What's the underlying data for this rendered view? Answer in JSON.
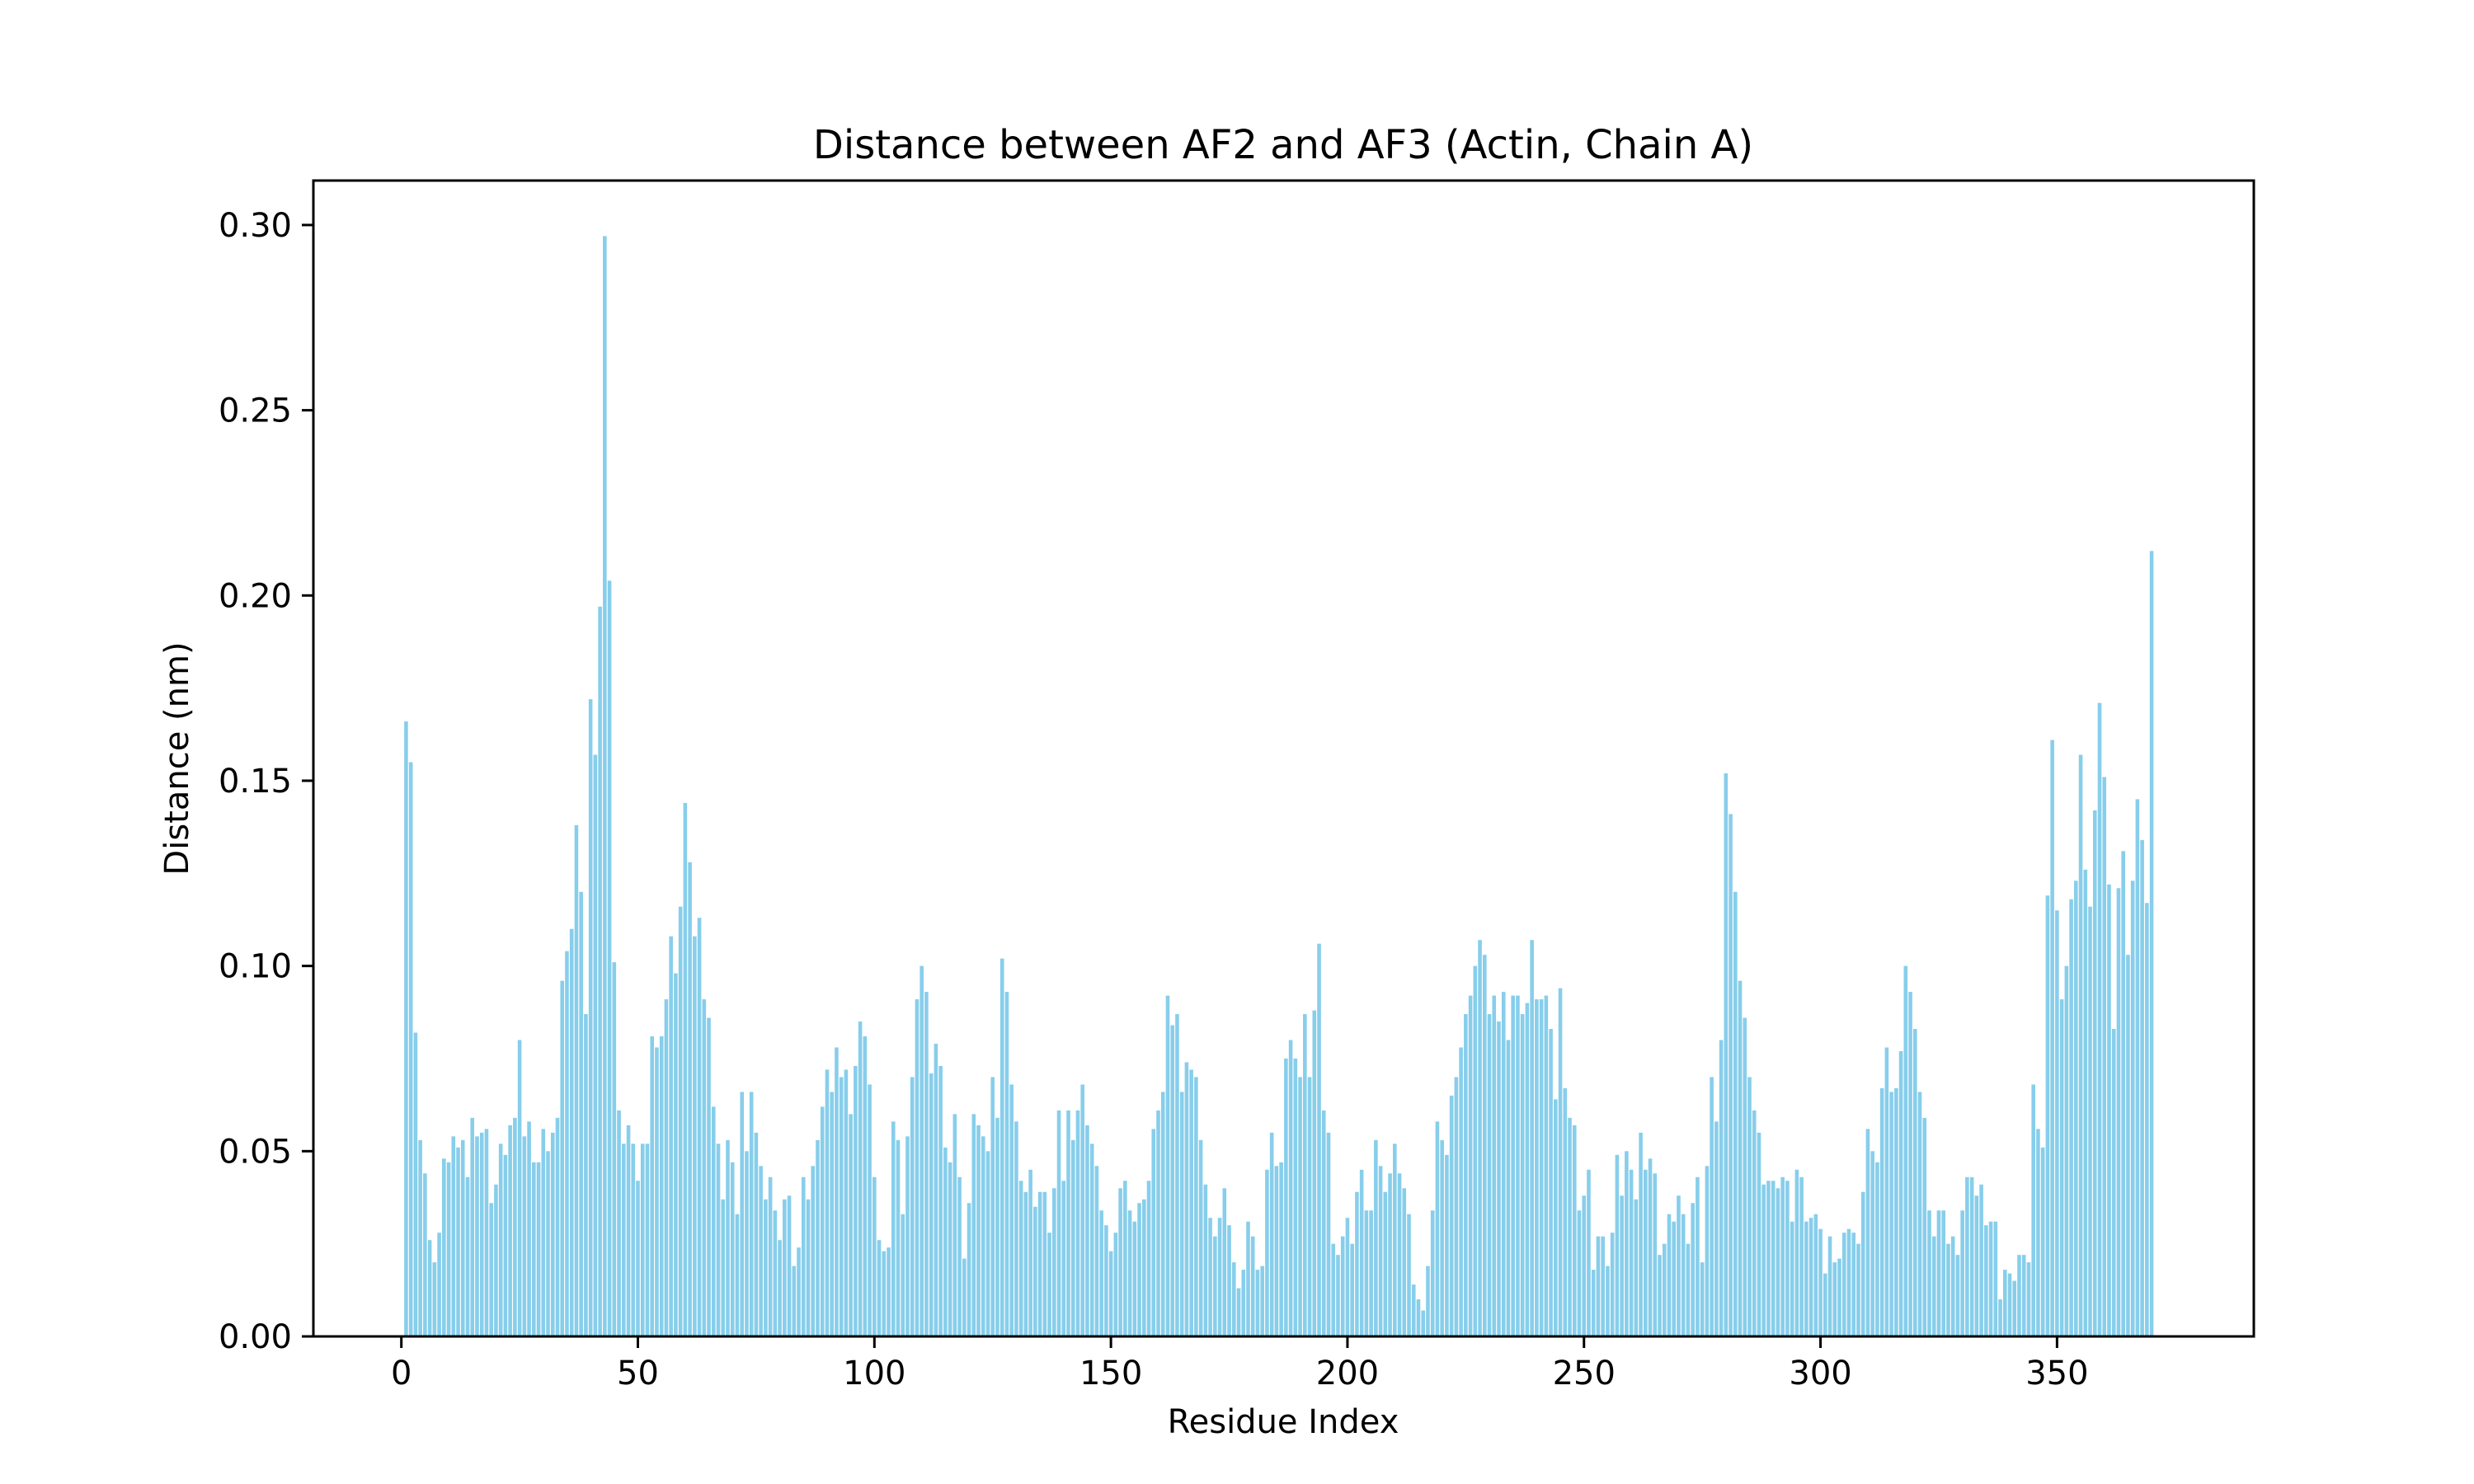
{
  "chart_data": {
    "type": "bar",
    "title": "Distance between AF2 and AF3 (Actin, Chain A)",
    "xlabel": "Residue Index",
    "ylabel": "Distance (nm)",
    "xlim": [
      -18.6,
      391.6
    ],
    "ylim": [
      0,
      0.312
    ],
    "xticks": [
      0,
      50,
      100,
      150,
      200,
      250,
      300,
      350
    ],
    "yticks": [
      0.0,
      0.05,
      0.1,
      0.15,
      0.2,
      0.25,
      0.3
    ],
    "ytick_labels": [
      "0.00",
      "0.05",
      "0.10",
      "0.15",
      "0.20",
      "0.25",
      "0.30"
    ],
    "bar_color": "#87ceeb",
    "grid": false,
    "x_start": 1,
    "series": [
      {
        "values": [
          0.166,
          0.155,
          0.082,
          0.053,
          0.044,
          0.026,
          0.02,
          0.028,
          0.048,
          0.047,
          0.054,
          0.051,
          0.053,
          0.043,
          0.059,
          0.054,
          0.055,
          0.056,
          0.036,
          0.041,
          0.052,
          0.049,
          0.057,
          0.059,
          0.08,
          0.054,
          0.058,
          0.047,
          0.047,
          0.056,
          0.05,
          0.055,
          0.059,
          0.096,
          0.104,
          0.11,
          0.138,
          0.12,
          0.087,
          0.172,
          0.157,
          0.197,
          0.297,
          0.204,
          0.101,
          0.061,
          0.052,
          0.057,
          0.052,
          0.042,
          0.052,
          0.052,
          0.081,
          0.078,
          0.081,
          0.091,
          0.108,
          0.098,
          0.116,
          0.144,
          0.128,
          0.108,
          0.113,
          0.091,
          0.086,
          0.062,
          0.052,
          0.037,
          0.053,
          0.047,
          0.033,
          0.066,
          0.05,
          0.066,
          0.055,
          0.046,
          0.037,
          0.043,
          0.034,
          0.026,
          0.037,
          0.038,
          0.019,
          0.024,
          0.043,
          0.037,
          0.046,
          0.053,
          0.062,
          0.072,
          0.066,
          0.078,
          0.07,
          0.072,
          0.06,
          0.073,
          0.085,
          0.081,
          0.068,
          0.043,
          0.026,
          0.023,
          0.024,
          0.058,
          0.053,
          0.033,
          0.054,
          0.07,
          0.091,
          0.1,
          0.093,
          0.071,
          0.079,
          0.073,
          0.051,
          0.047,
          0.06,
          0.043,
          0.021,
          0.036,
          0.06,
          0.057,
          0.054,
          0.05,
          0.07,
          0.059,
          0.102,
          0.093,
          0.068,
          0.058,
          0.042,
          0.039,
          0.045,
          0.035,
          0.039,
          0.039,
          0.028,
          0.04,
          0.061,
          0.042,
          0.061,
          0.053,
          0.061,
          0.068,
          0.057,
          0.052,
          0.046,
          0.034,
          0.03,
          0.023,
          0.028,
          0.04,
          0.042,
          0.034,
          0.031,
          0.036,
          0.037,
          0.042,
          0.056,
          0.061,
          0.066,
          0.092,
          0.084,
          0.087,
          0.066,
          0.074,
          0.072,
          0.07,
          0.053,
          0.041,
          0.032,
          0.027,
          0.032,
          0.04,
          0.03,
          0.02,
          0.013,
          0.018,
          0.031,
          0.027,
          0.018,
          0.019,
          0.045,
          0.055,
          0.046,
          0.047,
          0.075,
          0.08,
          0.075,
          0.07,
          0.087,
          0.07,
          0.088,
          0.106,
          0.061,
          0.055,
          0.025,
          0.022,
          0.027,
          0.032,
          0.025,
          0.039,
          0.045,
          0.034,
          0.034,
          0.053,
          0.046,
          0.039,
          0.044,
          0.052,
          0.044,
          0.04,
          0.033,
          0.014,
          0.01,
          0.007,
          0.019,
          0.034,
          0.058,
          0.053,
          0.049,
          0.065,
          0.07,
          0.078,
          0.087,
          0.092,
          0.1,
          0.107,
          0.103,
          0.087,
          0.092,
          0.085,
          0.093,
          0.08,
          0.092,
          0.092,
          0.087,
          0.09,
          0.107,
          0.091,
          0.091,
          0.092,
          0.083,
          0.064,
          0.094,
          0.067,
          0.059,
          0.057,
          0.034,
          0.038,
          0.045,
          0.018,
          0.027,
          0.027,
          0.019,
          0.028,
          0.049,
          0.038,
          0.05,
          0.045,
          0.037,
          0.055,
          0.045,
          0.048,
          0.044,
          0.022,
          0.025,
          0.033,
          0.031,
          0.038,
          0.033,
          0.025,
          0.036,
          0.043,
          0.02,
          0.046,
          0.07,
          0.058,
          0.08,
          0.152,
          0.141,
          0.12,
          0.096,
          0.086,
          0.07,
          0.061,
          0.055,
          0.041,
          0.042,
          0.042,
          0.04,
          0.043,
          0.042,
          0.031,
          0.045,
          0.043,
          0.031,
          0.032,
          0.033,
          0.029,
          0.017,
          0.027,
          0.02,
          0.021,
          0.028,
          0.029,
          0.028,
          0.025,
          0.039,
          0.056,
          0.05,
          0.047,
          0.067,
          0.078,
          0.066,
          0.067,
          0.077,
          0.1,
          0.093,
          0.083,
          0.066,
          0.059,
          0.034,
          0.027,
          0.034,
          0.034,
          0.025,
          0.027,
          0.022,
          0.034,
          0.043,
          0.043,
          0.038,
          0.041,
          0.03,
          0.031,
          0.031,
          0.01,
          0.018,
          0.017,
          0.015,
          0.022,
          0.022,
          0.02,
          0.068,
          0.056,
          0.051,
          0.119,
          0.161,
          0.115,
          0.091,
          0.1,
          0.118,
          0.123,
          0.157,
          0.126,
          0.116,
          0.142,
          0.171,
          0.151,
          0.122,
          0.083,
          0.121,
          0.131,
          0.103,
          0.123,
          0.145,
          0.134,
          0.117,
          0.212
        ]
      }
    ]
  }
}
